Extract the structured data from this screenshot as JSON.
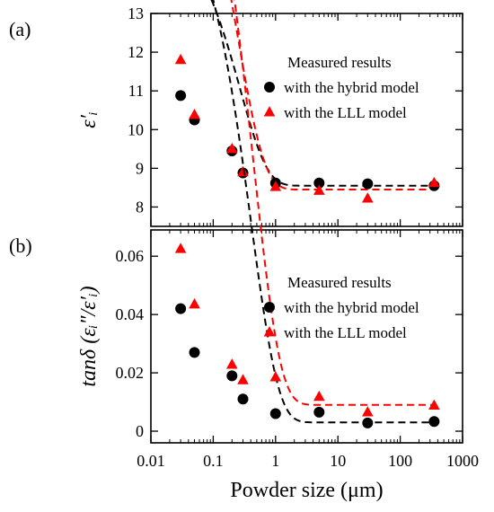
{
  "chart_data": [
    {
      "type": "scatter",
      "panel_label": "(a)",
      "xlabel": "",
      "ylabel_html": "ε′ᵢ",
      "xscale": "log",
      "xlim": [
        0.01,
        1000
      ],
      "ylim": [
        7.5,
        13
      ],
      "yticks": [
        8,
        9,
        10,
        11,
        12,
        13
      ],
      "ytick_labels": [
        "8",
        "9",
        "10",
        "11",
        "12",
        "13"
      ],
      "legend_title": "Measured results",
      "legend_position": "right",
      "series": [
        {
          "name": "with the hybrid model",
          "marker": "circle",
          "color": "#000000",
          "x": [
            0.03,
            0.05,
            0.2,
            0.3,
            1,
            5,
            30,
            350
          ],
          "y": [
            10.88,
            10.25,
            9.45,
            8.88,
            8.62,
            8.62,
            8.6,
            8.55
          ],
          "fit": {
            "a": 8.55,
            "b": 6.8,
            "k": 3.7
          }
        },
        {
          "name": "with the LLL model",
          "marker": "triangle",
          "color": "#ff0000",
          "x": [
            0.03,
            0.05,
            0.2,
            0.3,
            1,
            5,
            30,
            350
          ],
          "y": [
            11.8,
            10.38,
            9.5,
            8.9,
            8.52,
            8.42,
            8.22,
            8.62
          ],
          "fit": {
            "a": 8.45,
            "b": 10.9,
            "k": 4.1
          }
        }
      ]
    },
    {
      "type": "scatter",
      "panel_label": "(b)",
      "xlabel": "Powder size (μm)",
      "ylabel_html": "tanδ (εᵢ″/ε′ᵢ)",
      "xscale": "log",
      "xlim": [
        0.01,
        1000
      ],
      "xticks": [
        0.01,
        0.1,
        1,
        10,
        100,
        1000
      ],
      "xtick_labels": [
        "0.01",
        "0.1",
        "1",
        "10",
        "100",
        "1000"
      ],
      "ylim": [
        -0.004,
        0.069
      ],
      "yticks": [
        0,
        0.02,
        0.04,
        0.06
      ],
      "ytick_labels": [
        "0",
        "0.02",
        "0.04",
        "0.06"
      ],
      "legend_title": "Measured results",
      "legend_position": "right",
      "series": [
        {
          "name": "with the hybrid model",
          "marker": "circle",
          "color": "#000000",
          "x": [
            0.03,
            0.05,
            0.2,
            0.3,
            1,
            5,
            30,
            350
          ],
          "y": [
            0.042,
            0.027,
            0.019,
            0.011,
            0.006,
            0.0065,
            0.0028,
            0.0033
          ],
          "fit": {
            "a": 0.003,
            "b": 0.185,
            "k": 2.45
          }
        },
        {
          "name": "with the LLL model",
          "marker": "triangle",
          "color": "#ff0000",
          "x": [
            0.03,
            0.05,
            0.2,
            0.3,
            1,
            5,
            30,
            350
          ],
          "y": [
            0.0625,
            0.0435,
            0.0228,
            0.0175,
            0.0185,
            0.0118,
            0.0065,
            0.0088
          ],
          "fit": {
            "a": 0.009,
            "b": 0.23,
            "k": 2.3
          }
        }
      ]
    }
  ]
}
